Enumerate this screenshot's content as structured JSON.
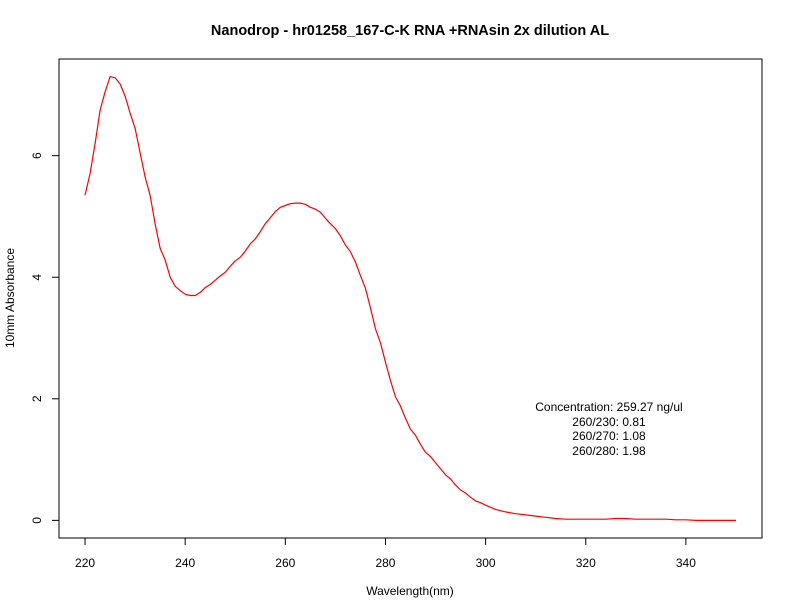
{
  "chart_data": {
    "type": "line",
    "title": "Nanodrop - hr01258_167-C-K RNA +RNAsin  2x dilution AL",
    "xlabel": "Wavelength(nm)",
    "ylabel": "10mm Absorbance",
    "xlim": [
      214.8,
      355.2
    ],
    "ylim": [
      -0.29,
      7.59
    ],
    "xticks": [
      220,
      240,
      260,
      280,
      300,
      320,
      340
    ],
    "yticks": [
      0,
      2,
      4,
      6
    ],
    "grid": false,
    "legend": "none",
    "series": [
      {
        "color": "#ff0000",
        "x": [
          220,
          221,
          222,
          223,
          224,
          225,
          226,
          227,
          228,
          229,
          230,
          231,
          232,
          233,
          234,
          235,
          236,
          237,
          238,
          239,
          240,
          241,
          242,
          243,
          244,
          245,
          246,
          247,
          248,
          249,
          250,
          251,
          252,
          253,
          254,
          255,
          256,
          257,
          258,
          259,
          260,
          261,
          262,
          263,
          264,
          265,
          266,
          267,
          268,
          269,
          270,
          271,
          272,
          273,
          274,
          275,
          276,
          277,
          278,
          279,
          280,
          281,
          282,
          283,
          284,
          285,
          286,
          287,
          288,
          289,
          290,
          291,
          292,
          293,
          294,
          295,
          296,
          297,
          298,
          299,
          300,
          302,
          304,
          306,
          308,
          310,
          312,
          314,
          316,
          318,
          320,
          322,
          324,
          326,
          328,
          330,
          332,
          334,
          336,
          338,
          340,
          342,
          344,
          346,
          348,
          350
        ],
        "y": [
          5.35,
          5.7,
          6.2,
          6.75,
          7.05,
          7.3,
          7.28,
          7.18,
          6.98,
          6.7,
          6.45,
          6.05,
          5.65,
          5.35,
          4.88,
          4.48,
          4.28,
          4.0,
          3.85,
          3.78,
          3.72,
          3.7,
          3.7,
          3.75,
          3.83,
          3.88,
          3.95,
          4.02,
          4.08,
          4.18,
          4.27,
          4.33,
          4.43,
          4.55,
          4.63,
          4.75,
          4.88,
          4.98,
          5.08,
          5.15,
          5.18,
          5.21,
          5.22,
          5.22,
          5.2,
          5.15,
          5.12,
          5.07,
          4.97,
          4.88,
          4.8,
          4.68,
          4.53,
          4.42,
          4.25,
          4.03,
          3.82,
          3.5,
          3.15,
          2.92,
          2.6,
          2.3,
          2.03,
          1.88,
          1.68,
          1.5,
          1.4,
          1.25,
          1.12,
          1.05,
          0.95,
          0.85,
          0.75,
          0.68,
          0.58,
          0.5,
          0.45,
          0.38,
          0.32,
          0.29,
          0.25,
          0.18,
          0.14,
          0.11,
          0.09,
          0.07,
          0.05,
          0.03,
          0.02,
          0.02,
          0.02,
          0.02,
          0.02,
          0.03,
          0.03,
          0.02,
          0.02,
          0.02,
          0.02,
          0.01,
          0.01,
          0.0,
          0.0,
          0.0,
          0.0,
          0.0
        ]
      }
    ],
    "annotations": [
      "Concentration: 259.27 ng/ul",
      "260/230: 0.81",
      "260/270: 1.08",
      "260/280: 1.98"
    ]
  }
}
